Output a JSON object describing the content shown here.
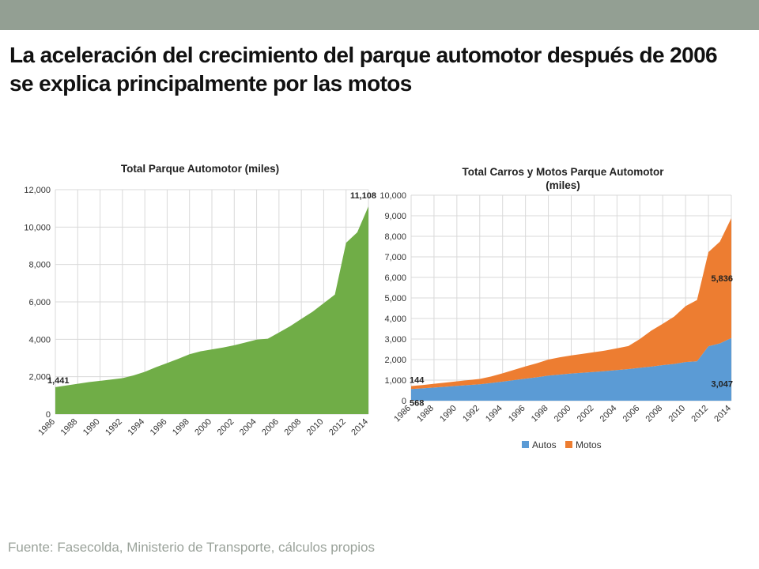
{
  "slide": {
    "title": "La aceleración del crecimiento del parque automotor después de 2006 se explica principalmente por las motos",
    "source": "Fuente: Fasecolda, Ministerio de Transporte, cálculos propios",
    "header_bar_color": "#939f93"
  },
  "chart_data": [
    {
      "type": "area",
      "title": "Total Parque Automotor (miles)",
      "xlabel": "",
      "ylabel": "",
      "x": [
        1986,
        1987,
        1988,
        1989,
        1990,
        1991,
        1992,
        1993,
        1994,
        1995,
        1996,
        1997,
        1998,
        1999,
        2000,
        2001,
        2002,
        2003,
        2004,
        2005,
        2006,
        2007,
        2008,
        2009,
        2010,
        2011,
        2012,
        2013,
        2014
      ],
      "x_tick_labels": [
        "1986",
        "1988",
        "1990",
        "1992",
        "1994",
        "1996",
        "1998",
        "2000",
        "2002",
        "2004",
        "2006",
        "2008",
        "2010",
        "2012",
        "2014"
      ],
      "ylim": [
        0,
        12000
      ],
      "y_ticks": [
        0,
        2000,
        4000,
        6000,
        8000,
        10000,
        12000
      ],
      "y_tick_labels": [
        "0",
        "2,000",
        "4,000",
        "6,000",
        "8,000",
        "10,000",
        "12,000"
      ],
      "grid": true,
      "series": [
        {
          "color": "#70ad47",
          "values": [
            1441,
            1530,
            1620,
            1710,
            1780,
            1850,
            1920,
            2070,
            2260,
            2510,
            2730,
            2960,
            3200,
            3360,
            3460,
            3560,
            3680,
            3830,
            3980,
            4030,
            4360,
            4700,
            5090,
            5470,
            5930,
            6390,
            9160,
            9720,
            11108
          ]
        }
      ],
      "data_labels": [
        {
          "x": 1986,
          "text": "1,441"
        },
        {
          "x": 2014,
          "text": "11,108"
        }
      ]
    },
    {
      "type": "area",
      "stacked": true,
      "title": "Total Carros y Motos Parque Automotor (miles)",
      "title_lines": [
        "Total Carros y Motos Parque Automotor",
        "(miles)"
      ],
      "xlabel": "",
      "ylabel": "",
      "x": [
        1986,
        1987,
        1988,
        1989,
        1990,
        1991,
        1992,
        1993,
        1994,
        1995,
        1996,
        1997,
        1998,
        1999,
        2000,
        2001,
        2002,
        2003,
        2004,
        2005,
        2006,
        2007,
        2008,
        2009,
        2010,
        2011,
        2012,
        2013,
        2014
      ],
      "x_tick_labels": [
        "1986",
        "1988",
        "1990",
        "1992",
        "1994",
        "1996",
        "1998",
        "2000",
        "2002",
        "2004",
        "2006",
        "2008",
        "2010",
        "2012",
        "2014"
      ],
      "ylim": [
        0,
        10000
      ],
      "y_ticks": [
        0,
        1000,
        2000,
        3000,
        4000,
        5000,
        6000,
        7000,
        8000,
        9000,
        10000
      ],
      "y_tick_labels": [
        "0",
        "1,000",
        "2,000",
        "3,000",
        "4,000",
        "5,000",
        "6,000",
        "7,000",
        "8,000",
        "9,000",
        "10,000"
      ],
      "grid": true,
      "legend": {
        "position": "bottom"
      },
      "series": [
        {
          "name": "Autos",
          "color": "#5b9bd5",
          "values": [
            568,
            600,
            640,
            680,
            720,
            760,
            800,
            860,
            930,
            1000,
            1070,
            1140,
            1220,
            1270,
            1320,
            1360,
            1400,
            1440,
            1490,
            1540,
            1600,
            1660,
            1730,
            1790,
            1880,
            1920,
            2650,
            2790,
            3047
          ]
        },
        {
          "name": "Motos",
          "color": "#ed7d31",
          "values": [
            144,
            160,
            180,
            200,
            220,
            240,
            260,
            320,
            400,
            500,
            600,
            680,
            780,
            840,
            880,
            920,
            960,
            1000,
            1060,
            1120,
            1400,
            1750,
            2010,
            2300,
            2720,
            2980,
            4580,
            4950,
            5836
          ]
        }
      ],
      "data_labels": [
        {
          "x": 1986,
          "series": "Motos",
          "text": "144"
        },
        {
          "x": 1986,
          "series": "Autos",
          "text": "568"
        },
        {
          "x": 2014,
          "series": "Motos",
          "text": "5,836"
        },
        {
          "x": 2014,
          "series": "Autos",
          "text": "3,047"
        }
      ]
    }
  ]
}
